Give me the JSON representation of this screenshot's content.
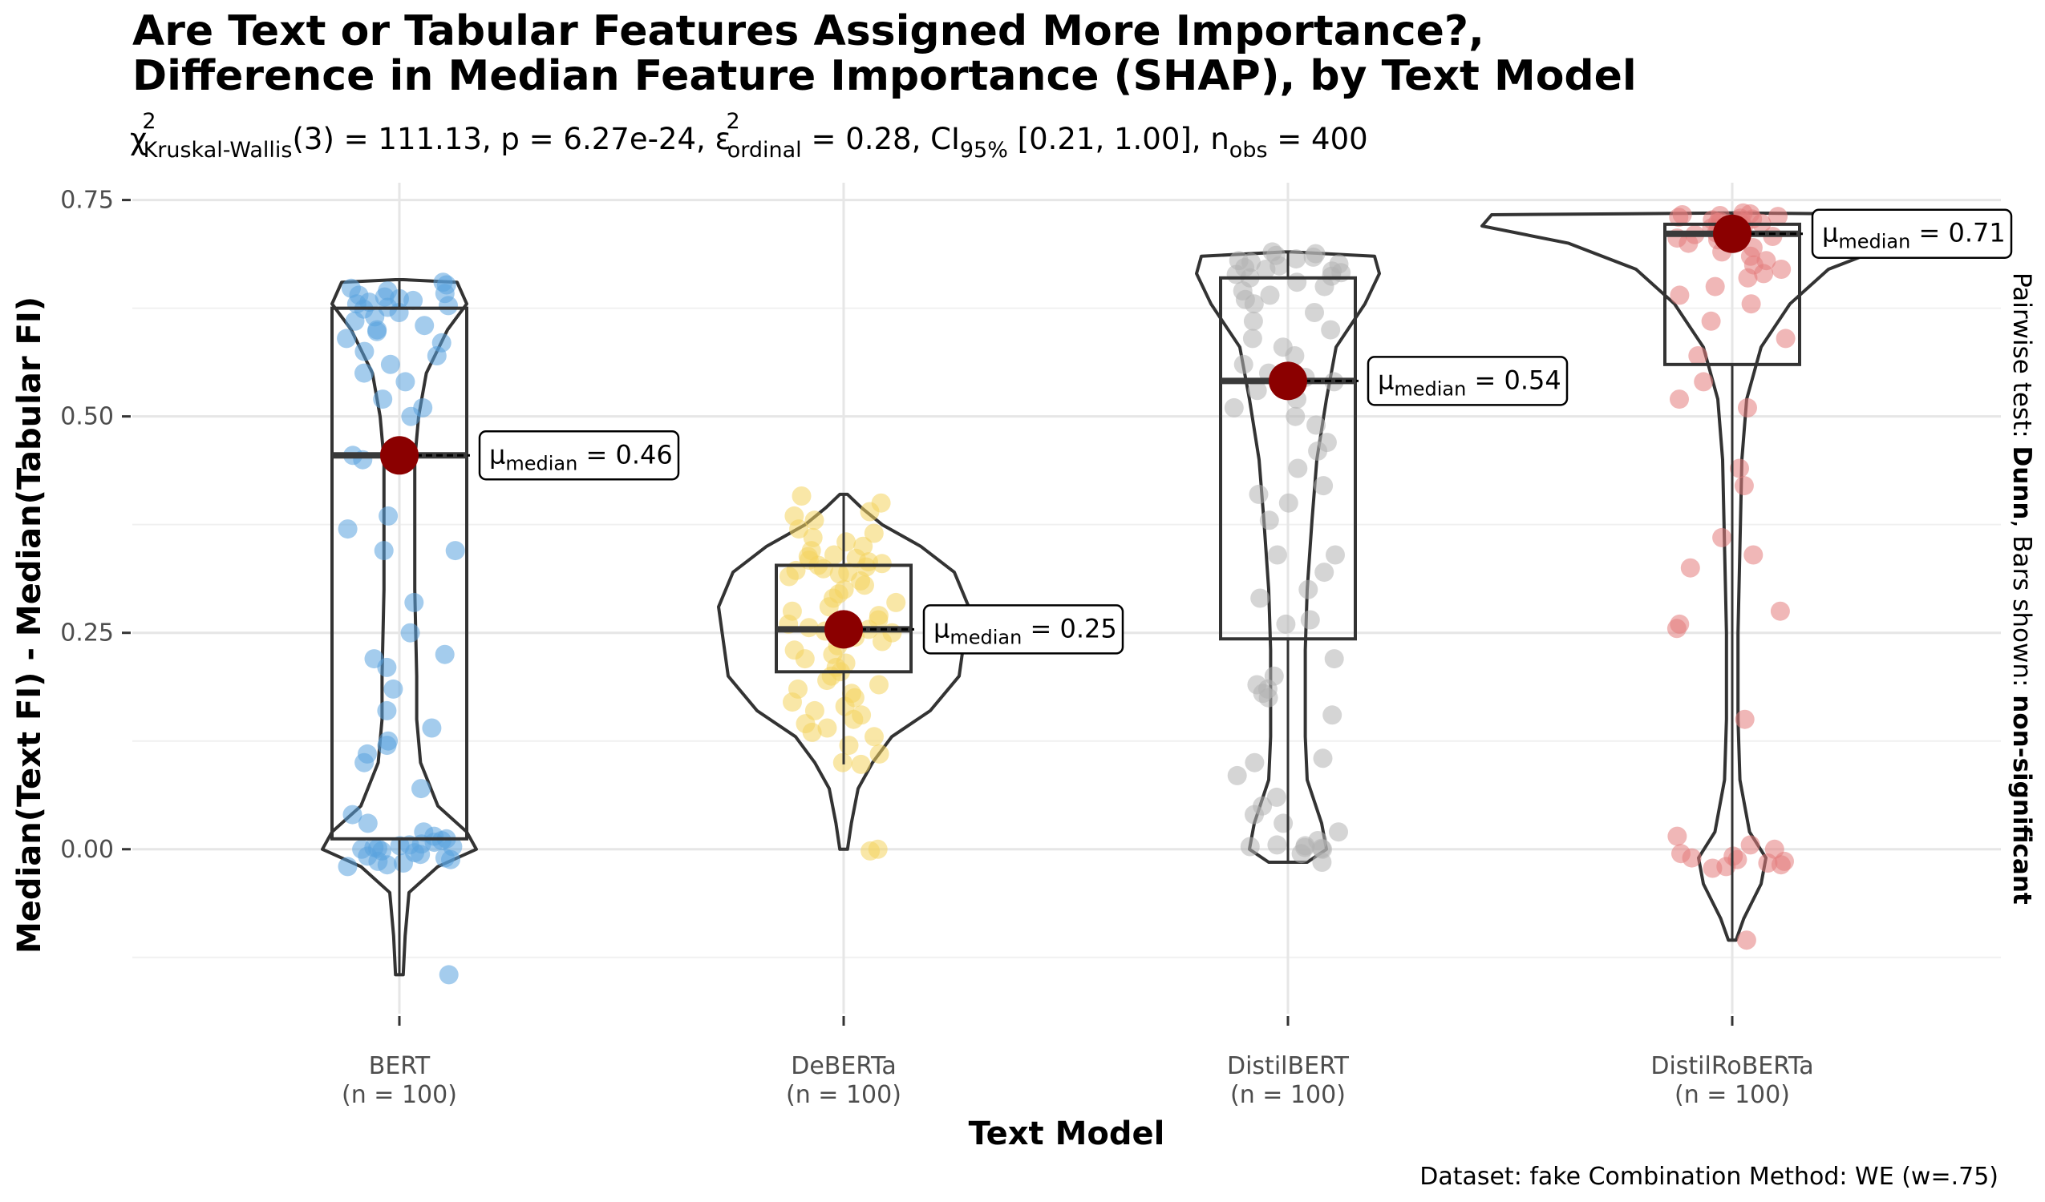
{
  "title_line1": "Are Text or Tabular Features Assigned More Importance?,",
  "title_line2": "Difference in Median Feature Importance (SHAP), by Text Model",
  "subtitle": {
    "chi": "χ",
    "sup": "2",
    "kw": "Kruskal-Wallis",
    "part1": "(3) = 111.13, p = 6.27e-24, ",
    "eps": "ε",
    "eps_sup": "2",
    "ordinal": "ordinal",
    "part2": " = 0.28, CI",
    "ci_sub": "95%",
    "part3": " [0.21, 1.00], n",
    "obs_sub": "obs",
    "part4": " = 400"
  },
  "caption": "Dataset:  fake Combination Method:  WE (w=.75)",
  "side_label": {
    "prefix": "Pairwise test: ",
    "test": "Dunn",
    "middle": ", Bars shown: ",
    "shown": "non-significant"
  },
  "median_label": {
    "mu": "μ",
    "sub": "median",
    "eq": " = "
  },
  "chart_data": {
    "type": "violin-box-scatter",
    "xlabel": "Text Model",
    "ylabel": "Median(Text FI) - Median(Tabular FI)",
    "ylim": [
      -0.19,
      0.77
    ],
    "yticks": [
      0.0,
      0.25,
      0.5,
      0.75
    ],
    "ytick_labels": [
      "0.00",
      "0.25",
      "0.50",
      "0.75"
    ],
    "grid": true,
    "colors": {
      "BERT": "#5aa3df",
      "DeBERTa": "#f4d35e",
      "DistilBERT": "#b3b3b3",
      "DistilRoBERTa": "#e37b7b",
      "median_point": "#8b0000"
    },
    "groups": [
      {
        "name": "BERT",
        "n_label": "(n = 100)",
        "median": 0.455,
        "median_label": "0.46",
        "q1": 0.012,
        "q3": 0.625,
        "whisker_low": -0.145,
        "whisker_high": 0.658,
        "color_key": "BERT",
        "violin": [
          [
            -0.145,
            0.004
          ],
          [
            -0.1,
            0.006
          ],
          [
            -0.05,
            0.01
          ],
          [
            -0.02,
            0.04
          ],
          [
            0.0,
            0.08
          ],
          [
            0.02,
            0.07
          ],
          [
            0.05,
            0.04
          ],
          [
            0.1,
            0.022
          ],
          [
            0.15,
            0.018
          ],
          [
            0.2,
            0.018
          ],
          [
            0.25,
            0.017
          ],
          [
            0.3,
            0.016
          ],
          [
            0.35,
            0.016
          ],
          [
            0.4,
            0.016
          ],
          [
            0.45,
            0.016
          ],
          [
            0.5,
            0.02
          ],
          [
            0.55,
            0.028
          ],
          [
            0.6,
            0.05
          ],
          [
            0.63,
            0.07
          ],
          [
            0.655,
            0.06
          ],
          [
            0.658,
            0.004
          ]
        ],
        "points": [
          0.655,
          0.652,
          0.648,
          0.645,
          0.642,
          0.64,
          0.638,
          0.636,
          0.634,
          0.632,
          0.63,
          0.628,
          0.626,
          0.624,
          0.62,
          0.615,
          0.61,
          0.605,
          0.6,
          0.598,
          0.59,
          0.585,
          0.575,
          0.57,
          0.56,
          0.55,
          0.54,
          0.52,
          0.51,
          0.5,
          0.455,
          0.45,
          0.385,
          0.37,
          0.345,
          0.345,
          0.285,
          0.25,
          0.225,
          0.22,
          0.21,
          0.185,
          0.16,
          0.14,
          0.125,
          0.12,
          0.11,
          0.1,
          0.07,
          0.04,
          0.03,
          0.02,
          0.015,
          0.012,
          0.01,
          0.008,
          0.006,
          0.005,
          0.004,
          0.003,
          0.002,
          0.001,
          0.0,
          -0.002,
          -0.004,
          -0.006,
          -0.008,
          -0.01,
          -0.012,
          -0.014,
          -0.016,
          -0.018,
          -0.02,
          -0.145
        ]
      },
      {
        "name": "DeBERTa",
        "n_label": "(n = 100)",
        "median": 0.254,
        "median_label": "0.25",
        "q1": 0.205,
        "q3": 0.328,
        "whisker_low": 0.098,
        "whisker_high": 0.41,
        "color_key": "DeBERTa",
        "violin": [
          [
            0.0,
            0.004
          ],
          [
            0.03,
            0.008
          ],
          [
            0.07,
            0.015
          ],
          [
            0.1,
            0.03
          ],
          [
            0.13,
            0.05
          ],
          [
            0.16,
            0.09
          ],
          [
            0.2,
            0.12
          ],
          [
            0.24,
            0.125
          ],
          [
            0.28,
            0.13
          ],
          [
            0.32,
            0.115
          ],
          [
            0.35,
            0.08
          ],
          [
            0.375,
            0.04
          ],
          [
            0.395,
            0.018
          ],
          [
            0.41,
            0.004
          ]
        ],
        "points": [
          0.408,
          0.4,
          0.39,
          0.385,
          0.38,
          0.37,
          0.365,
          0.36,
          0.355,
          0.35,
          0.345,
          0.34,
          0.338,
          0.336,
          0.334,
          0.332,
          0.33,
          0.328,
          0.326,
          0.324,
          0.322,
          0.32,
          0.318,
          0.315,
          0.31,
          0.305,
          0.3,
          0.295,
          0.29,
          0.285,
          0.28,
          0.275,
          0.27,
          0.265,
          0.26,
          0.258,
          0.256,
          0.254,
          0.252,
          0.25,
          0.245,
          0.24,
          0.235,
          0.23,
          0.225,
          0.22,
          0.215,
          0.21,
          0.205,
          0.2,
          0.195,
          0.19,
          0.185,
          0.18,
          0.175,
          0.17,
          0.165,
          0.16,
          0.155,
          0.15,
          0.145,
          0.14,
          0.135,
          0.13,
          0.12,
          0.11,
          0.1,
          0.098,
          0.0,
          -0.002
        ]
      },
      {
        "name": "DistilBERT",
        "n_label": "(n = 100)",
        "median": 0.541,
        "median_label": "0.54",
        "q1": 0.243,
        "q3": 0.66,
        "whisker_low": -0.015,
        "whisker_high": 0.69,
        "color_key": "DistilBERT",
        "violin": [
          [
            -0.015,
            0.02
          ],
          [
            0.0,
            0.04
          ],
          [
            0.03,
            0.035
          ],
          [
            0.08,
            0.02
          ],
          [
            0.13,
            0.018
          ],
          [
            0.18,
            0.018
          ],
          [
            0.23,
            0.018
          ],
          [
            0.3,
            0.02
          ],
          [
            0.38,
            0.025
          ],
          [
            0.45,
            0.03
          ],
          [
            0.52,
            0.04
          ],
          [
            0.58,
            0.05
          ],
          [
            0.63,
            0.08
          ],
          [
            0.665,
            0.095
          ],
          [
            0.685,
            0.09
          ],
          [
            0.69,
            0.004
          ]
        ],
        "points": [
          0.69,
          0.688,
          0.686,
          0.684,
          0.682,
          0.68,
          0.678,
          0.676,
          0.674,
          0.672,
          0.67,
          0.668,
          0.666,
          0.664,
          0.662,
          0.66,
          0.655,
          0.65,
          0.645,
          0.64,
          0.635,
          0.63,
          0.62,
          0.61,
          0.6,
          0.59,
          0.58,
          0.57,
          0.56,
          0.55,
          0.545,
          0.54,
          0.53,
          0.52,
          0.51,
          0.5,
          0.49,
          0.47,
          0.46,
          0.44,
          0.42,
          0.41,
          0.4,
          0.38,
          0.34,
          0.34,
          0.32,
          0.3,
          0.29,
          0.265,
          0.26,
          0.22,
          0.2,
          0.19,
          0.185,
          0.18,
          0.175,
          0.155,
          0.105,
          0.1,
          0.085,
          0.06,
          0.05,
          0.04,
          0.03,
          0.02,
          0.01,
          0.005,
          0.004,
          0.003,
          0.002,
          0.001,
          0.0,
          -0.005,
          -0.015
        ]
      },
      {
        "name": "DistilRoBERTa",
        "n_label": "(n = 100)",
        "median": 0.711,
        "median_label": "0.71",
        "q1": 0.56,
        "q3": 0.722,
        "whisker_low": -0.105,
        "whisker_high": 0.735,
        "color_key": "DistilRoBERTa",
        "violin": [
          [
            -0.105,
            0.004
          ],
          [
            -0.08,
            0.012
          ],
          [
            -0.04,
            0.03
          ],
          [
            -0.01,
            0.035
          ],
          [
            0.02,
            0.018
          ],
          [
            0.08,
            0.008
          ],
          [
            0.15,
            0.006
          ],
          [
            0.25,
            0.006
          ],
          [
            0.35,
            0.008
          ],
          [
            0.45,
            0.01
          ],
          [
            0.52,
            0.015
          ],
          [
            0.58,
            0.03
          ],
          [
            0.63,
            0.06
          ],
          [
            0.67,
            0.1
          ],
          [
            0.7,
            0.17
          ],
          [
            0.72,
            0.26
          ],
          [
            0.733,
            0.25
          ],
          [
            0.735,
            0.004
          ]
        ],
        "points": [
          0.735,
          0.734,
          0.733,
          0.732,
          0.731,
          0.73,
          0.729,
          0.728,
          0.727,
          0.726,
          0.725,
          0.724,
          0.723,
          0.722,
          0.721,
          0.72,
          0.718,
          0.716,
          0.714,
          0.712,
          0.71,
          0.708,
          0.706,
          0.704,
          0.7,
          0.695,
          0.69,
          0.685,
          0.68,
          0.675,
          0.67,
          0.665,
          0.66,
          0.65,
          0.64,
          0.63,
          0.61,
          0.59,
          0.57,
          0.54,
          0.52,
          0.51,
          0.44,
          0.42,
          0.36,
          0.34,
          0.325,
          0.275,
          0.26,
          0.255,
          0.15,
          0.015,
          0.005,
          0.0,
          -0.005,
          -0.008,
          -0.01,
          -0.012,
          -0.014,
          -0.016,
          -0.018,
          -0.02,
          -0.022,
          -0.105
        ]
      }
    ]
  }
}
